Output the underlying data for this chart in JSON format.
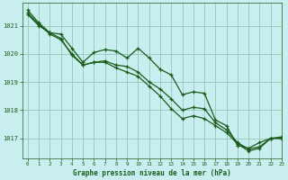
{
  "title": "Graphe pression niveau de la mer (hPa)",
  "background_color": "#c8eef0",
  "grid_color": "#90c8b8",
  "line_color": "#1a5c1a",
  "xlim": [
    -0.5,
    23
  ],
  "ylim": [
    1016.3,
    1021.8
  ],
  "yticks": [
    1017,
    1018,
    1019,
    1020,
    1021
  ],
  "xticks": [
    0,
    1,
    2,
    3,
    4,
    5,
    6,
    7,
    8,
    9,
    10,
    11,
    12,
    13,
    14,
    15,
    16,
    17,
    18,
    19,
    20,
    21,
    22,
    23
  ],
  "series": [
    [
      1021.55,
      1021.1,
      1020.75,
      1020.7,
      1020.2,
      1019.7,
      1020.05,
      1020.15,
      1020.1,
      1019.85,
      1020.2,
      1019.85,
      1019.45,
      1019.25,
      1018.55,
      1018.65,
      1018.6,
      1017.65,
      1017.45,
      1016.75,
      1016.65,
      1016.85,
      1017.0,
      1017.05
    ],
    [
      1021.45,
      1021.05,
      1020.7,
      1020.5,
      1020.0,
      1019.6,
      1019.7,
      1019.75,
      1019.6,
      1019.55,
      1019.35,
      1019.0,
      1018.75,
      1018.4,
      1018.0,
      1018.1,
      1018.05,
      1017.55,
      1017.3,
      1016.85,
      1016.62,
      1016.7,
      1017.0,
      1017.0
    ],
    [
      1021.4,
      1021.0,
      1020.75,
      1020.55,
      1019.95,
      1019.6,
      1019.7,
      1019.7,
      1019.5,
      1019.35,
      1019.2,
      1018.85,
      1018.5,
      1018.05,
      1017.7,
      1017.8,
      1017.7,
      1017.45,
      1017.2,
      1016.8,
      1016.55,
      1016.65,
      1017.0,
      1017.0
    ]
  ]
}
